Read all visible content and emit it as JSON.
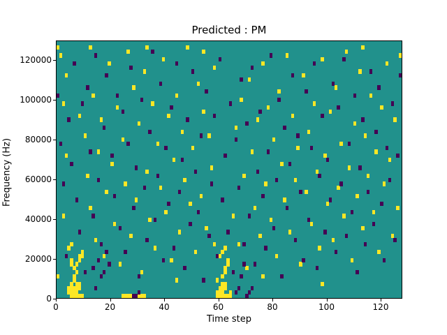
{
  "chart_data": {
    "type": "heatmap",
    "title": "Predicted : PM",
    "xlabel": "Time step",
    "ylabel": "Frequency (Hz)",
    "xlim": [
      0,
      128
    ],
    "ylim": [
      0,
      130000
    ],
    "x_ticks": [
      0,
      20,
      40,
      60,
      80,
      100,
      120
    ],
    "y_ticks": [
      0,
      20000,
      40000,
      60000,
      80000,
      100000,
      120000
    ],
    "grid": {
      "time_steps": 128,
      "freq_bins": 64,
      "bin_height_hz": 2031
    },
    "colors": {
      "background": "#21918c",
      "high": "#fde725",
      "low": "#440154"
    },
    "legend": "none",
    "high_cells": [
      [
        4,
        1
      ],
      [
        4,
        2
      ],
      [
        5,
        0
      ],
      [
        5,
        1
      ],
      [
        5,
        2
      ],
      [
        5,
        3
      ],
      [
        6,
        0
      ],
      [
        6,
        1
      ],
      [
        6,
        2
      ],
      [
        6,
        4
      ],
      [
        6,
        5
      ],
      [
        7,
        0
      ],
      [
        7,
        1
      ],
      [
        7,
        2
      ],
      [
        7,
        3
      ],
      [
        7,
        6
      ],
      [
        7,
        8
      ],
      [
        8,
        0
      ],
      [
        8,
        2
      ],
      [
        8,
        3
      ],
      [
        8,
        9
      ],
      [
        8,
        10
      ],
      [
        9,
        0
      ],
      [
        9,
        10
      ],
      [
        9,
        11
      ],
      [
        6,
        7
      ],
      [
        5,
        8
      ],
      [
        5,
        9
      ],
      [
        4,
        12
      ],
      [
        5,
        13
      ],
      [
        58,
        13
      ],
      [
        59,
        0
      ],
      [
        59,
        1
      ],
      [
        59,
        4
      ],
      [
        60,
        0
      ],
      [
        60,
        1
      ],
      [
        60,
        2
      ],
      [
        60,
        10
      ],
      [
        61,
        0
      ],
      [
        61,
        1
      ],
      [
        61,
        2
      ],
      [
        61,
        3
      ],
      [
        61,
        5
      ],
      [
        61,
        11
      ],
      [
        62,
        0
      ],
      [
        62,
        2
      ],
      [
        62,
        3
      ],
      [
        62,
        6
      ],
      [
        62,
        7
      ],
      [
        62,
        12
      ],
      [
        63,
        0
      ],
      [
        63,
        8
      ],
      [
        63,
        9
      ],
      [
        64,
        0
      ],
      [
        64,
        1
      ],
      [
        24,
        0
      ],
      [
        25,
        0
      ],
      [
        26,
        0
      ],
      [
        27,
        0
      ],
      [
        30,
        0
      ],
      [
        31,
        0
      ],
      [
        32,
        0
      ],
      [
        1,
        60
      ],
      [
        2,
        48
      ],
      [
        3,
        35
      ],
      [
        2,
        20
      ],
      [
        0,
        5
      ],
      [
        3,
        55
      ],
      [
        10,
        40
      ],
      [
        11,
        30
      ],
      [
        12,
        22
      ],
      [
        13,
        50
      ],
      [
        14,
        14
      ],
      [
        15,
        36
      ],
      [
        16,
        44
      ],
      [
        17,
        10
      ],
      [
        18,
        26
      ],
      [
        19,
        58
      ],
      [
        20,
        33
      ],
      [
        21,
        18
      ],
      [
        22,
        47
      ],
      [
        23,
        8
      ],
      [
        24,
        39
      ],
      [
        25,
        28
      ],
      [
        26,
        61
      ],
      [
        27,
        15
      ],
      [
        28,
        52
      ],
      [
        29,
        24
      ],
      [
        30,
        43
      ],
      [
        31,
        6
      ],
      [
        32,
        56
      ],
      [
        33,
        31
      ],
      [
        34,
        19
      ],
      [
        35,
        48
      ],
      [
        36,
        12
      ],
      [
        37,
        38
      ],
      [
        38,
        27
      ],
      [
        39,
        59
      ],
      [
        40,
        21
      ],
      [
        41,
        45
      ],
      [
        42,
        9
      ],
      [
        43,
        34
      ],
      [
        44,
        50
      ],
      [
        45,
        16
      ],
      [
        46,
        41
      ],
      [
        47,
        29
      ],
      [
        48,
        62
      ],
      [
        49,
        23
      ],
      [
        50,
        37
      ],
      [
        51,
        11
      ],
      [
        52,
        53
      ],
      [
        53,
        25
      ],
      [
        54,
        46
      ],
      [
        55,
        17
      ],
      [
        56,
        40
      ],
      [
        57,
        32
      ],
      [
        58,
        57
      ],
      [
        65,
        20
      ],
      [
        66,
        42
      ],
      [
        67,
        13
      ],
      [
        68,
        49
      ],
      [
        69,
        30
      ],
      [
        70,
        7
      ],
      [
        71,
        54
      ],
      [
        72,
        36
      ],
      [
        73,
        22
      ],
      [
        74,
        44
      ],
      [
        75,
        15
      ],
      [
        76,
        58
      ],
      [
        77,
        28
      ],
      [
        78,
        47
      ],
      [
        79,
        19
      ],
      [
        80,
        39
      ],
      [
        81,
        10
      ],
      [
        82,
        51
      ],
      [
        83,
        33
      ],
      [
        84,
        24
      ],
      [
        85,
        60
      ],
      [
        86,
        16
      ],
      [
        87,
        45
      ],
      [
        88,
        29
      ],
      [
        89,
        37
      ],
      [
        90,
        8
      ],
      [
        91,
        55
      ],
      [
        92,
        26
      ],
      [
        93,
        41
      ],
      [
        94,
        18
      ],
      [
        95,
        48
      ],
      [
        96,
        31
      ],
      [
        97,
        12
      ],
      [
        98,
        59
      ],
      [
        99,
        35
      ],
      [
        100,
        23
      ],
      [
        101,
        46
      ],
      [
        102,
        14
      ],
      [
        103,
        52
      ],
      [
        104,
        27
      ],
      [
        105,
        38
      ],
      [
        106,
        20
      ],
      [
        107,
        61
      ],
      [
        108,
        32
      ],
      [
        109,
        9
      ],
      [
        110,
        43
      ],
      [
        111,
        25
      ],
      [
        112,
        56
      ],
      [
        113,
        17
      ],
      [
        114,
        40
      ],
      [
        115,
        30
      ],
      [
        116,
        50
      ],
      [
        117,
        21
      ],
      [
        118,
        36
      ],
      [
        119,
        11
      ],
      [
        120,
        47
      ],
      [
        121,
        28
      ],
      [
        122,
        58
      ],
      [
        123,
        34
      ],
      [
        124,
        15
      ],
      [
        125,
        44
      ],
      [
        126,
        22
      ],
      [
        127,
        60
      ],
      [
        0,
        62
      ],
      [
        8,
        45
      ],
      [
        12,
        62
      ],
      [
        33,
        62
      ],
      [
        54,
        61
      ],
      [
        76,
        5
      ],
      [
        98,
        3
      ],
      [
        113,
        62
      ],
      [
        44,
        4
      ]
    ],
    "low_cells": [
      [
        0,
        50
      ],
      [
        1,
        38
      ],
      [
        2,
        28
      ],
      [
        3,
        10
      ],
      [
        4,
        44
      ],
      [
        5,
        33
      ],
      [
        6,
        58
      ],
      [
        7,
        24
      ],
      [
        8,
        16
      ],
      [
        9,
        48
      ],
      [
        10,
        6
      ],
      [
        11,
        52
      ],
      [
        12,
        36
      ],
      [
        13,
        20
      ],
      [
        14,
        60
      ],
      [
        15,
        29
      ],
      [
        16,
        13
      ],
      [
        17,
        42
      ],
      [
        18,
        55
      ],
      [
        19,
        8
      ],
      [
        20,
        35
      ],
      [
        21,
        25
      ],
      [
        22,
        50
      ],
      [
        23,
        17
      ],
      [
        24,
        46
      ],
      [
        25,
        11
      ],
      [
        26,
        38
      ],
      [
        27,
        57
      ],
      [
        28,
        22
      ],
      [
        29,
        32
      ],
      [
        30,
        5
      ],
      [
        31,
        49
      ],
      [
        32,
        27
      ],
      [
        33,
        14
      ],
      [
        34,
        41
      ],
      [
        35,
        61
      ],
      [
        36,
        19
      ],
      [
        37,
        30
      ],
      [
        38,
        53
      ],
      [
        39,
        9
      ],
      [
        40,
        37
      ],
      [
        41,
        23
      ],
      [
        42,
        47
      ],
      [
        43,
        12
      ],
      [
        44,
        58
      ],
      [
        45,
        26
      ],
      [
        46,
        34
      ],
      [
        47,
        7
      ],
      [
        48,
        44
      ],
      [
        49,
        18
      ],
      [
        50,
        56
      ],
      [
        51,
        31
      ],
      [
        52,
        21
      ],
      [
        53,
        40
      ],
      [
        54,
        4
      ],
      [
        55,
        51
      ],
      [
        56,
        15
      ],
      [
        57,
        28
      ],
      [
        58,
        45
      ],
      [
        59,
        10
      ],
      [
        60,
        59
      ],
      [
        61,
        24
      ],
      [
        62,
        35
      ],
      [
        63,
        16
      ],
      [
        64,
        48
      ],
      [
        65,
        6
      ],
      [
        66,
        39
      ],
      [
        67,
        27
      ],
      [
        68,
        54
      ],
      [
        69,
        13
      ],
      [
        70,
        43
      ],
      [
        71,
        20
      ],
      [
        72,
        57
      ],
      [
        73,
        8
      ],
      [
        74,
        31
      ],
      [
        75,
        46
      ],
      [
        76,
        25
      ],
      [
        77,
        12
      ],
      [
        78,
        36
      ],
      [
        79,
        60
      ],
      [
        80,
        17
      ],
      [
        81,
        29
      ],
      [
        82,
        49
      ],
      [
        83,
        5
      ],
      [
        84,
        42
      ],
      [
        85,
        22
      ],
      [
        86,
        33
      ],
      [
        87,
        55
      ],
      [
        88,
        14
      ],
      [
        89,
        40
      ],
      [
        90,
        26
      ],
      [
        91,
        9
      ],
      [
        92,
        51
      ],
      [
        93,
        19
      ],
      [
        94,
        37
      ],
      [
        95,
        58
      ],
      [
        96,
        7
      ],
      [
        97,
        30
      ],
      [
        98,
        45
      ],
      [
        99,
        16
      ],
      [
        100,
        34
      ],
      [
        101,
        24
      ],
      [
        102,
        53
      ],
      [
        103,
        11
      ],
      [
        104,
        47
      ],
      [
        105,
        28
      ],
      [
        106,
        59
      ],
      [
        107,
        15
      ],
      [
        108,
        38
      ],
      [
        109,
        21
      ],
      [
        110,
        50
      ],
      [
        111,
        6
      ],
      [
        112,
        32
      ],
      [
        113,
        44
      ],
      [
        114,
        13
      ],
      [
        115,
        26
      ],
      [
        116,
        56
      ],
      [
        117,
        18
      ],
      [
        118,
        41
      ],
      [
        119,
        52
      ],
      [
        120,
        23
      ],
      [
        121,
        9
      ],
      [
        122,
        37
      ],
      [
        123,
        29
      ],
      [
        124,
        48
      ],
      [
        125,
        14
      ],
      [
        126,
        35
      ],
      [
        127,
        55
      ],
      [
        14,
        2
      ],
      [
        30,
        1
      ],
      [
        70,
        0
      ],
      [
        71,
        1
      ],
      [
        72,
        2
      ],
      [
        16,
        5
      ],
      [
        17,
        6
      ],
      [
        66,
        1
      ],
      [
        67,
        2
      ],
      [
        28,
        0
      ],
      [
        29,
        0
      ],
      [
        13,
        7
      ],
      [
        15,
        9
      ],
      [
        18,
        11
      ],
      [
        68,
        5
      ],
      [
        69,
        8
      ]
    ]
  }
}
